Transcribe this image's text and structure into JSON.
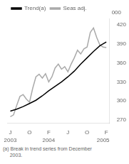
{
  "chart_data": {
    "type": "line",
    "ylabel": "000",
    "footnote": "(a) Break in trend series from December\n     2003.",
    "xlim": [
      -0.5,
      15.5
    ],
    "xticks": [
      {
        "value": 0,
        "label": "J"
      },
      {
        "value": 3,
        "label": "O"
      },
      {
        "value": 6,
        "label": "F"
      },
      {
        "value": 9,
        "label": "J"
      },
      {
        "value": 12,
        "label": "O"
      },
      {
        "value": 15,
        "label": "F"
      }
    ],
    "ylim": [
      265,
      430
    ],
    "yticks": [
      270,
      300,
      330,
      360,
      390,
      420
    ],
    "grid": false,
    "legend": "upper left",
    "annotations": [
      {
        "text": "2003",
        "x": 0
      },
      {
        "text": "2004",
        "x": 6
      },
      {
        "text": "2005",
        "x": 14.5
      }
    ],
    "series": [
      {
        "name": "Trend(a)",
        "color": "#000000",
        "x": [
          0,
          1,
          2,
          3,
          4,
          5,
          6,
          7,
          8,
          9,
          10,
          11,
          12,
          13,
          14,
          15
        ],
        "values": [
          284,
          287,
          291,
          296,
          301,
          308,
          316,
          323,
          330,
          338,
          347,
          358,
          368,
          378,
          387,
          393
        ]
      },
      {
        "name": "Seas adj.",
        "color": "#aaaaaa",
        "x": [
          0,
          0.5,
          1,
          1.5,
          2,
          2.5,
          3,
          3.5,
          4,
          4.5,
          5,
          5.5,
          6,
          6.5,
          7,
          7.5,
          8,
          8.5,
          9,
          9.5,
          10,
          10.5,
          11,
          11.5,
          12,
          12.5,
          13,
          13.5,
          14,
          14.5,
          15
        ],
        "values": [
          275,
          278,
          293,
          307,
          310,
          303,
          298,
          320,
          338,
          342,
          336,
          343,
          330,
          338,
          352,
          358,
          350,
          354,
          346,
          358,
          368,
          380,
          374,
          382,
          385,
          408,
          415,
          400,
          388,
          385,
          384
        ]
      }
    ]
  }
}
